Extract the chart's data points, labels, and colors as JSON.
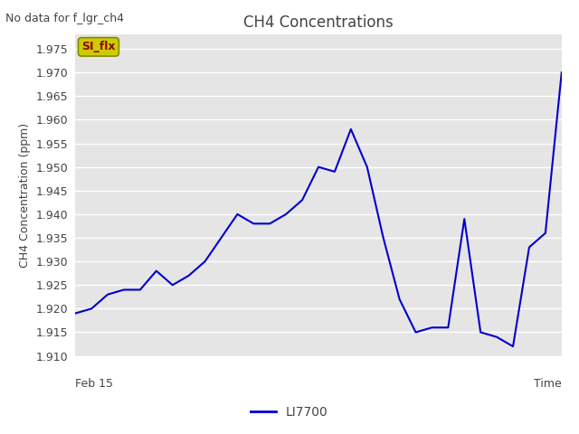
{
  "title": "CH4 Concentrations",
  "ylabel": "CH4 Concentration (ppm)",
  "xlabel": "Time",
  "top_left_text": "No data for f_lgr_ch4",
  "legend_label": "LI7700",
  "xaxis_label_feb15": "Feb 15",
  "ylim": [
    1.91,
    1.978
  ],
  "yticks": [
    1.91,
    1.915,
    1.92,
    1.925,
    1.93,
    1.935,
    1.94,
    1.945,
    1.95,
    1.955,
    1.96,
    1.965,
    1.97,
    1.975
  ],
  "line_color": "#0000CC",
  "plot_bg_color": "#E5E5E5",
  "fig_bg_color": "#FFFFFF",
  "x_values": [
    0,
    1,
    2,
    3,
    4,
    5,
    6,
    7,
    8,
    9,
    10,
    11,
    12,
    13,
    14,
    15,
    16,
    17,
    18,
    19,
    20,
    21,
    22,
    23,
    24,
    25,
    26,
    27,
    28,
    29,
    30
  ],
  "y_values": [
    1.919,
    1.92,
    1.923,
    1.924,
    1.924,
    1.928,
    1.925,
    1.927,
    1.93,
    1.935,
    1.94,
    1.938,
    1.938,
    1.94,
    1.943,
    1.95,
    1.949,
    1.958,
    1.95,
    1.935,
    1.922,
    1.915,
    1.916,
    1.916,
    1.939,
    1.915,
    1.914,
    1.912,
    1.933,
    1.936,
    1.97
  ],
  "si_flx_label": "SI_flx",
  "si_flx_bg": "#CCCC00",
  "si_flx_edge": "#888800",
  "si_flx_text_color": "#990000",
  "grid_color": "#FFFFFF",
  "tick_label_color": "#444444",
  "text_color": "#444444"
}
